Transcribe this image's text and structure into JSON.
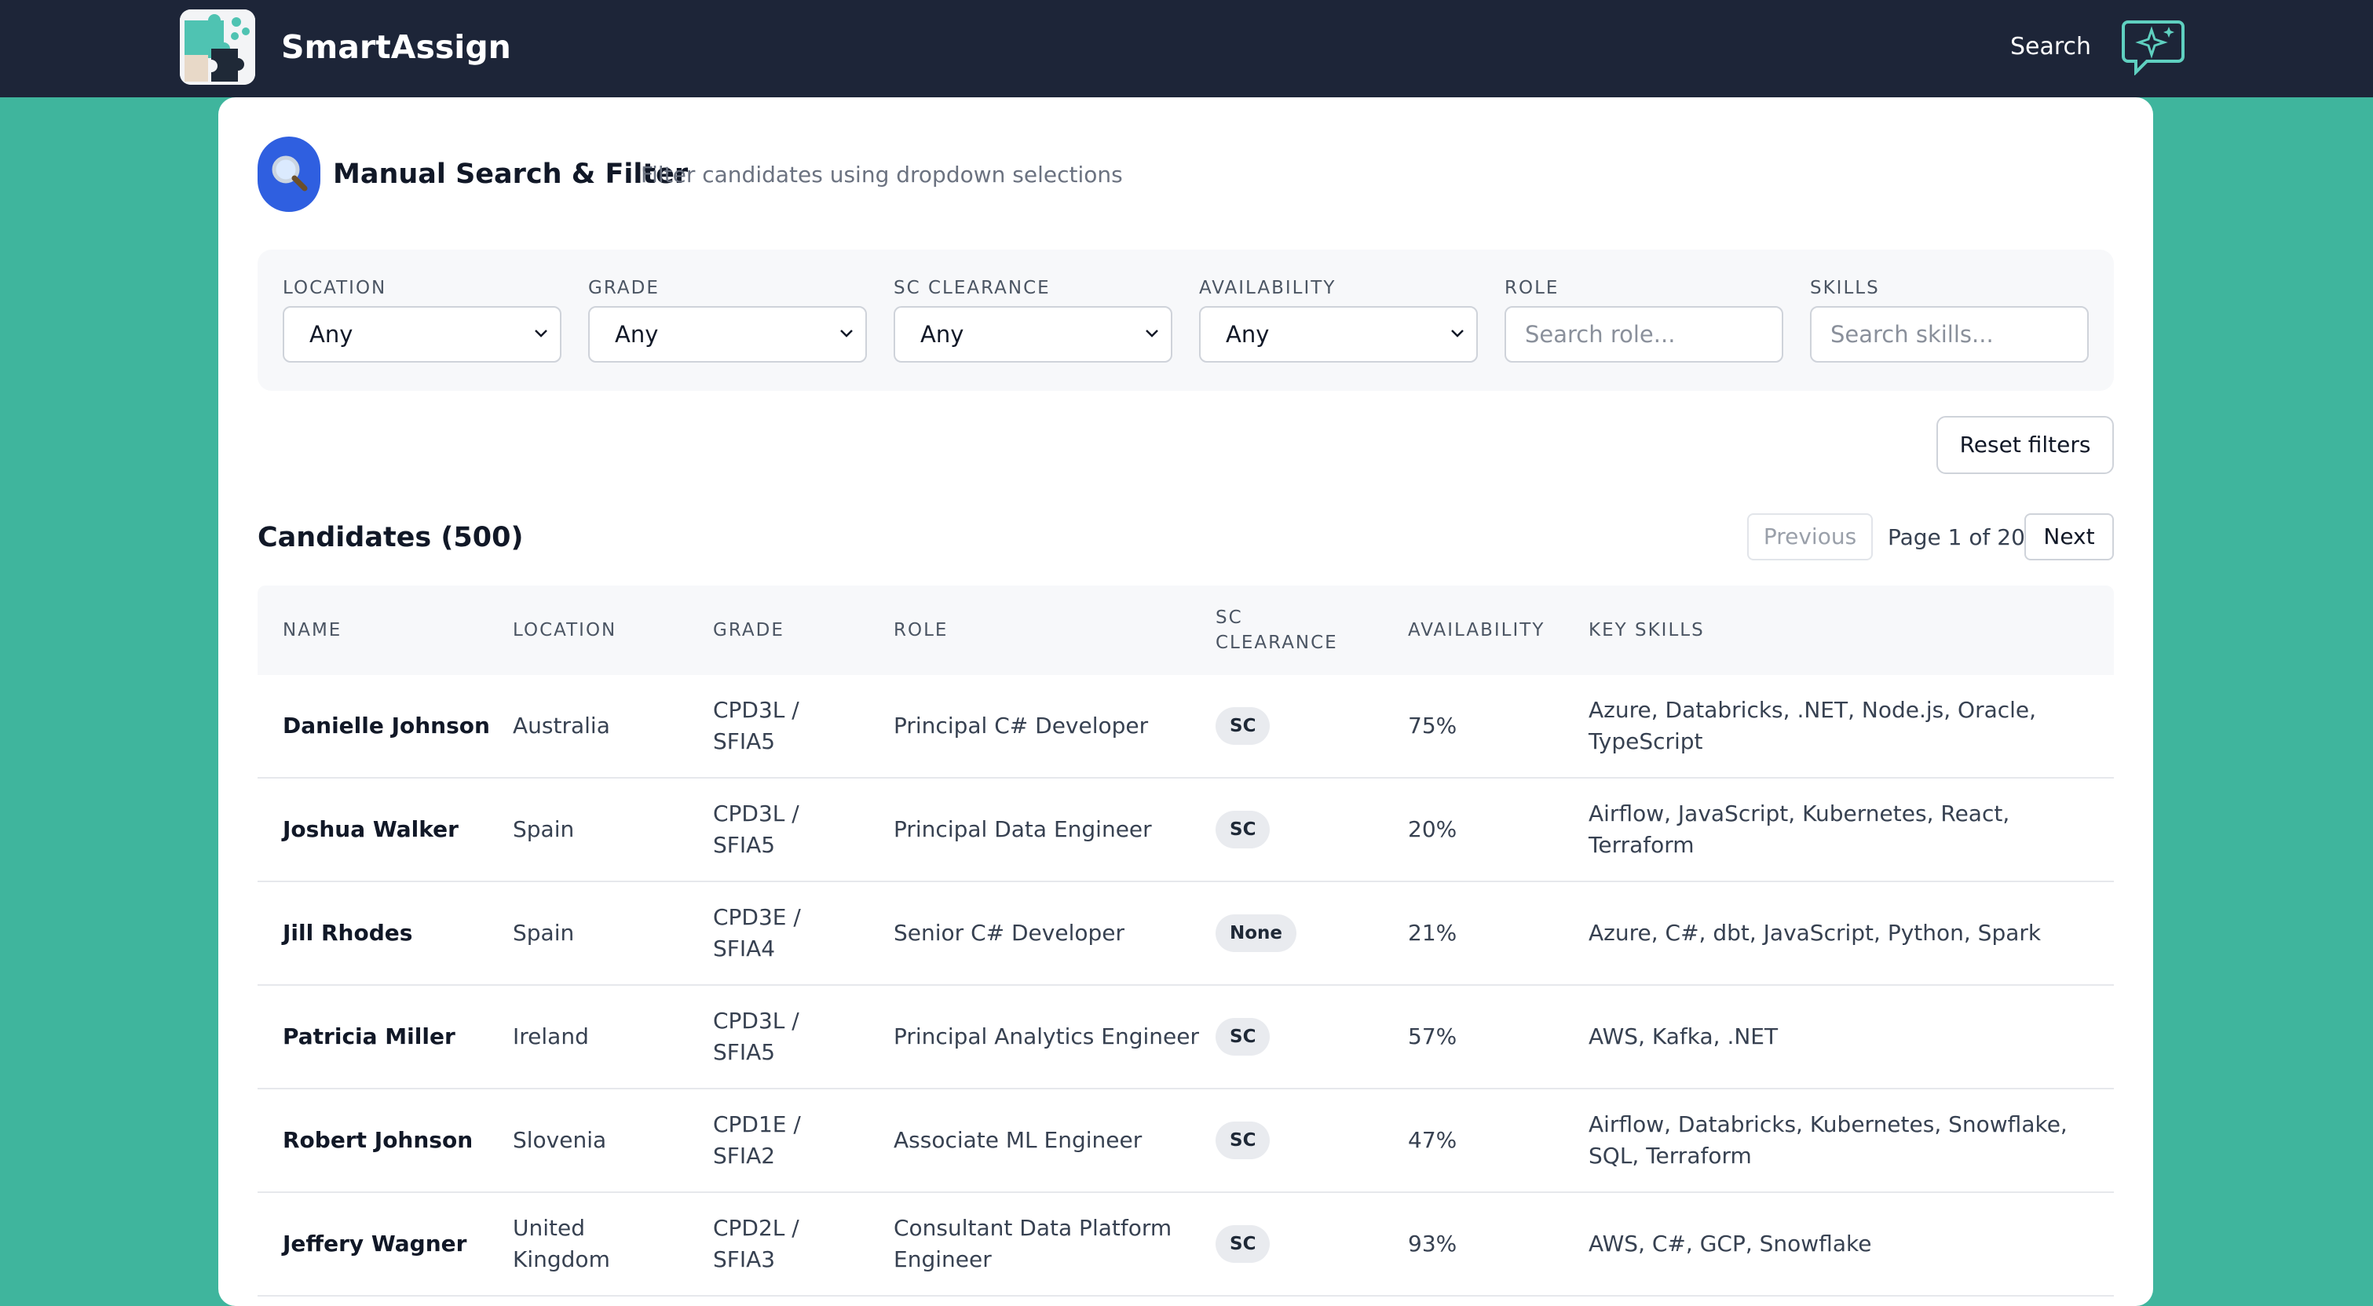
{
  "app": {
    "title": "SmartAssign",
    "nav_search": "Search"
  },
  "header": {
    "title": "Manual Search & Filter",
    "subtitle": "Filter candidates using dropdown selections"
  },
  "filters": [
    {
      "label": "LOCATION",
      "type": "select",
      "value": "Any"
    },
    {
      "label": "GRADE",
      "type": "select",
      "value": "Any"
    },
    {
      "label": "SC CLEARANCE",
      "type": "select",
      "value": "Any"
    },
    {
      "label": "AVAILABILITY",
      "type": "select",
      "value": "Any"
    },
    {
      "label": "ROLE",
      "type": "text",
      "placeholder": "Search role..."
    },
    {
      "label": "SKILLS",
      "type": "text",
      "placeholder": "Search skills..."
    }
  ],
  "reset_label": "Reset filters",
  "candidates_title": "Candidates (500)",
  "pagination": {
    "previous": "Previous",
    "page_info": "Page 1 of 20",
    "next": "Next"
  },
  "table": {
    "columns": [
      "NAME",
      "LOCATION",
      "GRADE",
      "ROLE",
      "SC CLEARANCE",
      "AVAILABILITY",
      "KEY SKILLS"
    ],
    "rows": [
      {
        "name": "Danielle Johnson",
        "location": "Australia",
        "grade": "CPD3L / SFIA5",
        "role": "Principal C# Developer",
        "sc": "SC",
        "availability": "75%",
        "skills": "Azure, Databricks, .NET, Node.js, Oracle, TypeScript"
      },
      {
        "name": "Joshua Walker",
        "location": "Spain",
        "grade": "CPD3L / SFIA5",
        "role": "Principal Data Engineer",
        "sc": "SC",
        "availability": "20%",
        "skills": "Airflow, JavaScript, Kubernetes, React, Terraform"
      },
      {
        "name": "Jill Rhodes",
        "location": "Spain",
        "grade": "CPD3E / SFIA4",
        "role": "Senior C# Developer",
        "sc": "None",
        "availability": "21%",
        "skills": "Azure, C#, dbt, JavaScript, Python, Spark"
      },
      {
        "name": "Patricia Miller",
        "location": "Ireland",
        "grade": "CPD3L / SFIA5",
        "role": "Principal Analytics Engineer",
        "sc": "SC",
        "availability": "57%",
        "skills": "AWS, Kafka, .NET"
      },
      {
        "name": "Robert Johnson",
        "location": "Slovenia",
        "grade": "CPD1E / SFIA2",
        "role": "Associate ML Engineer",
        "sc": "SC",
        "availability": "47%",
        "skills": "Airflow, Databricks, Kubernetes, Snowflake, SQL, Terraform"
      },
      {
        "name": "Jeffery Wagner",
        "location": "United Kingdom",
        "grade": "CPD2L / SFIA3",
        "role": "Consultant Data Platform Engineer",
        "sc": "SC",
        "availability": "93%",
        "skills": "AWS, C#, GCP, Snowflake"
      }
    ]
  }
}
